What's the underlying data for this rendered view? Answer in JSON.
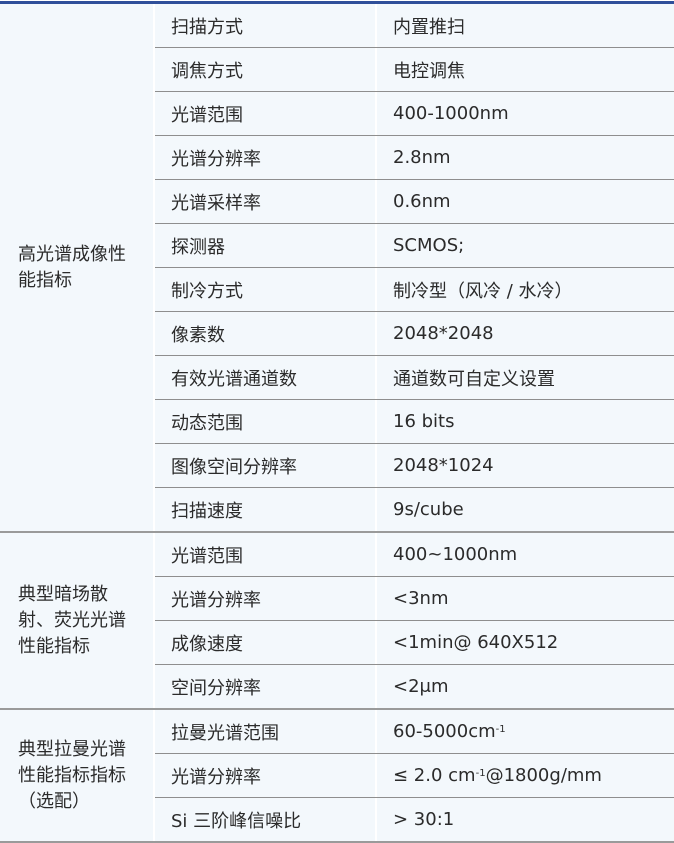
{
  "groups": [
    {
      "name": "高光谱成像性能指标",
      "rows": [
        {
          "key": "扫描方式",
          "value": "内置推扫"
        },
        {
          "key": "调焦方式",
          "value": "电控调焦"
        },
        {
          "key": "光谱范围",
          "value": "400-1000nm"
        },
        {
          "key": "光谱分辨率",
          "value": "2.8nm"
        },
        {
          "key": "光谱采样率",
          "value": "0.6nm"
        },
        {
          "key": "探测器",
          "value": "SCMOS;"
        },
        {
          "key": "制冷方式",
          "value": "制冷型（风冷 / 水冷）"
        },
        {
          "key": "像素数",
          "value": "2048*2048"
        },
        {
          "key": "有效光谱通道数",
          "value": "通道数可自定义设置"
        },
        {
          "key": "动态范围",
          "value": "16 bits"
        },
        {
          "key": "图像空间分辨率",
          "value": "2048*1024"
        },
        {
          "key": "扫描速度",
          "value": "9s/cube"
        }
      ]
    },
    {
      "name": "典型暗场散射、荧光光谱性能指标",
      "rows": [
        {
          "key": "光谱范围",
          "value": "400~1000nm"
        },
        {
          "key": "光谱分辨率",
          "value": "<3nm"
        },
        {
          "key": "成像速度",
          "value": "<1min@ 640X512"
        },
        {
          "key": "空间分辨率",
          "value": "<2μm"
        }
      ]
    },
    {
      "name": "典型拉曼光谱性能指标指标（选配）",
      "rows": [
        {
          "key": "拉曼光谱范围",
          "value": "60-5000cm",
          "sup": "-1"
        },
        {
          "key": "光谱分辨率",
          "value": "≤ 2.0 cm",
          "sup": "-1",
          "suffix": "@1800g/mm"
        },
        {
          "key": "Si 三阶峰信噪比",
          "value": "> 30:1"
        }
      ]
    }
  ],
  "colors": {
    "accent": "#2f4f9a",
    "background": "#f3f8fc"
  }
}
